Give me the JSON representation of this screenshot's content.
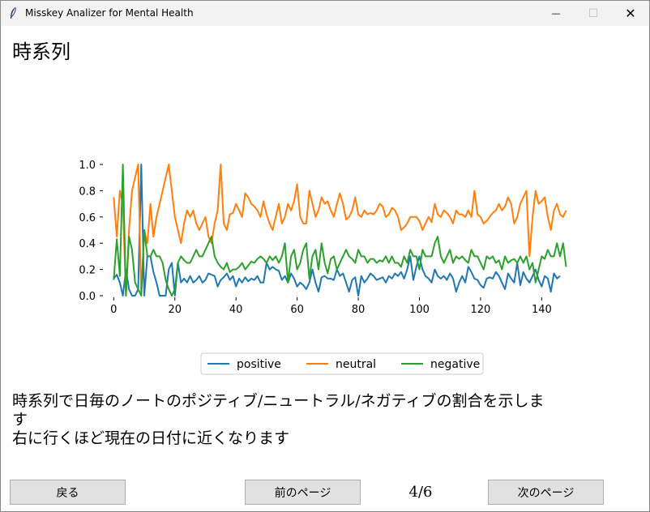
{
  "window": {
    "title": "Misskey Analizer for Mental Health",
    "minimize_symbol": "—",
    "maximize_symbol": "☐",
    "close_symbol": "✕",
    "icon": "feather-icon"
  },
  "page": {
    "heading": "時系列",
    "description_line1": "時系列で日毎のノートのポジティブ/ニュートラル/ネガティブの割合を示しま",
    "description_line2": "す",
    "description_line3": "右に行くほど現在の日付に近くなります",
    "page_indicator": "4/6"
  },
  "buttons": {
    "back": "戻る",
    "prev": "前のページ",
    "next": "次のページ"
  },
  "colors": {
    "positive": "#1f77b4",
    "neutral": "#ff7f0e",
    "negative": "#2ca02c"
  },
  "chart_data": {
    "type": "line",
    "x_start": 0,
    "x_step": 1,
    "xlim": [
      -3,
      146
    ],
    "ylim": [
      0,
      1.0
    ],
    "xticks": [
      "0",
      "20",
      "40",
      "60",
      "80",
      "100",
      "120",
      "140"
    ],
    "yticks": [
      "0.0",
      "0.2",
      "0.4",
      "0.6",
      "0.8",
      "1.0"
    ],
    "legend_position": "bottom-center",
    "grid": false,
    "series": [
      {
        "name": "positive",
        "values": [
          0.13,
          0.16,
          0.1,
          0.0,
          0.2,
          0.05,
          0.0,
          0.0,
          0.05,
          1.0,
          0.0,
          0.3,
          0.3,
          0.18,
          0.1,
          0.0,
          0.0,
          0.0,
          0.2,
          0.25,
          0.0,
          0.25,
          0.1,
          0.13,
          0.1,
          0.15,
          0.1,
          0.12,
          0.15,
          0.1,
          0.12,
          0.17,
          0.16,
          0.15,
          0.07,
          0.12,
          0.14,
          0.17,
          0.12,
          0.15,
          0.07,
          0.13,
          0.1,
          0.14,
          0.11,
          0.13,
          0.12,
          0.15,
          0.1,
          0.1,
          0.25,
          0.2,
          0.22,
          0.2,
          0.19,
          0.12,
          0.15,
          0.1,
          0.17,
          0.13,
          0.07,
          0.1,
          0.08,
          0.05,
          0.1,
          0.2,
          0.1,
          0.03,
          0.14,
          0.15,
          0.13,
          0.13,
          0.12,
          0.2,
          0.15,
          0.17,
          0.1,
          0.03,
          0.12,
          0.14,
          0.0,
          0.15,
          0.1,
          0.13,
          0.17,
          0.15,
          0.12,
          0.13,
          0.14,
          0.1,
          0.15,
          0.13,
          0.17,
          0.15,
          0.18,
          0.13,
          0.2,
          0.3,
          0.12,
          0.22,
          0.3,
          0.2,
          0.15,
          0.13,
          0.1,
          0.2,
          0.15,
          0.13,
          0.15,
          0.12,
          0.17,
          0.13,
          0.03,
          0.1,
          0.15,
          0.1,
          0.22,
          0.18,
          0.13,
          0.12,
          0.08,
          0.06,
          0.13,
          0.14,
          0.13,
          0.18,
          0.15,
          0.1,
          0.05,
          0.17,
          0.13,
          0.1,
          0.25,
          0.08,
          0.18,
          0.13,
          0.1,
          0.15,
          0.2,
          0.12,
          0.07,
          0.15,
          0.13,
          0.03,
          0.17,
          0.13,
          0.15
        ]
      },
      {
        "name": "neutral",
        "values": [
          0.75,
          0.45,
          0.8,
          0.7,
          0.0,
          0.5,
          0.8,
          0.9,
          1.0,
          0.0,
          0.5,
          0.4,
          0.7,
          0.45,
          0.6,
          0.7,
          0.8,
          0.9,
          1.0,
          0.8,
          0.6,
          0.5,
          0.4,
          0.55,
          0.65,
          0.6,
          0.65,
          0.55,
          0.5,
          0.55,
          0.6,
          0.45,
          0.4,
          0.55,
          0.65,
          1.0,
          0.55,
          0.5,
          0.62,
          0.63,
          0.7,
          0.65,
          0.6,
          0.78,
          0.75,
          0.7,
          0.68,
          0.65,
          0.6,
          0.72,
          0.62,
          0.55,
          0.5,
          0.6,
          0.7,
          0.55,
          0.6,
          0.7,
          0.65,
          0.72,
          0.85,
          0.6,
          0.55,
          0.55,
          0.8,
          0.7,
          0.6,
          0.65,
          0.75,
          0.7,
          0.72,
          0.65,
          0.6,
          0.7,
          0.78,
          0.7,
          0.58,
          0.6,
          0.65,
          0.75,
          0.62,
          0.6,
          0.65,
          0.62,
          0.63,
          0.62,
          0.65,
          0.7,
          0.68,
          0.6,
          0.62,
          0.67,
          0.65,
          0.6,
          0.5,
          0.52,
          0.55,
          0.6,
          0.6,
          0.6,
          0.57,
          0.5,
          0.55,
          0.6,
          0.56,
          0.7,
          0.62,
          0.6,
          0.65,
          0.63,
          0.6,
          0.55,
          0.65,
          0.62,
          0.62,
          0.6,
          0.65,
          0.6,
          0.8,
          0.62,
          0.6,
          0.55,
          0.57,
          0.6,
          0.63,
          0.65,
          0.7,
          0.65,
          0.68,
          0.75,
          0.7,
          0.55,
          0.6,
          0.7,
          0.75,
          0.8,
          0.3,
          0.6,
          0.8,
          0.7,
          0.72,
          0.75,
          0.6,
          0.5,
          0.65,
          0.7,
          0.62,
          0.6,
          0.65
        ]
      },
      {
        "name": "negative",
        "values": [
          0.12,
          0.43,
          0.15,
          1.0,
          0.0,
          0.45,
          0.35,
          0.1,
          0.05,
          0.0,
          0.5,
          0.3,
          0.3,
          0.35,
          0.3,
          0.3,
          0.25,
          0.12,
          0.05,
          0.0,
          0.05,
          0.25,
          0.3,
          0.27,
          0.25,
          0.25,
          0.3,
          0.35,
          0.3,
          0.3,
          0.35,
          0.4,
          0.45,
          0.3,
          0.25,
          0.22,
          0.2,
          0.25,
          0.18,
          0.2,
          0.2,
          0.22,
          0.25,
          0.2,
          0.23,
          0.26,
          0.25,
          0.28,
          0.3,
          0.28,
          0.25,
          0.3,
          0.27,
          0.3,
          0.25,
          0.3,
          0.4,
          0.1,
          0.3,
          0.35,
          0.2,
          0.25,
          0.35,
          0.4,
          0.13,
          0.3,
          0.35,
          0.2,
          0.4,
          0.25,
          0.17,
          0.28,
          0.3,
          0.2,
          0.25,
          0.3,
          0.35,
          0.3,
          0.28,
          0.25,
          0.35,
          0.3,
          0.3,
          0.25,
          0.28,
          0.28,
          0.25,
          0.27,
          0.26,
          0.3,
          0.25,
          0.3,
          0.25,
          0.25,
          0.22,
          0.3,
          0.25,
          0.35,
          0.3,
          0.3,
          0.2,
          0.35,
          0.3,
          0.3,
          0.3,
          0.4,
          0.45,
          0.3,
          0.25,
          0.3,
          0.35,
          0.25,
          0.3,
          0.28,
          0.3,
          0.27,
          0.25,
          0.35,
          0.3,
          0.3,
          0.25,
          0.2,
          0.3,
          0.28,
          0.3,
          0.25,
          0.27,
          0.2,
          0.3,
          0.25,
          0.27,
          0.28,
          0.25,
          0.3,
          0.25,
          0.3,
          0.2,
          0.25,
          0.1,
          0.2,
          0.3,
          0.28,
          0.35,
          0.3,
          0.3,
          0.4,
          0.3,
          0.4,
          0.22
        ]
      }
    ]
  }
}
